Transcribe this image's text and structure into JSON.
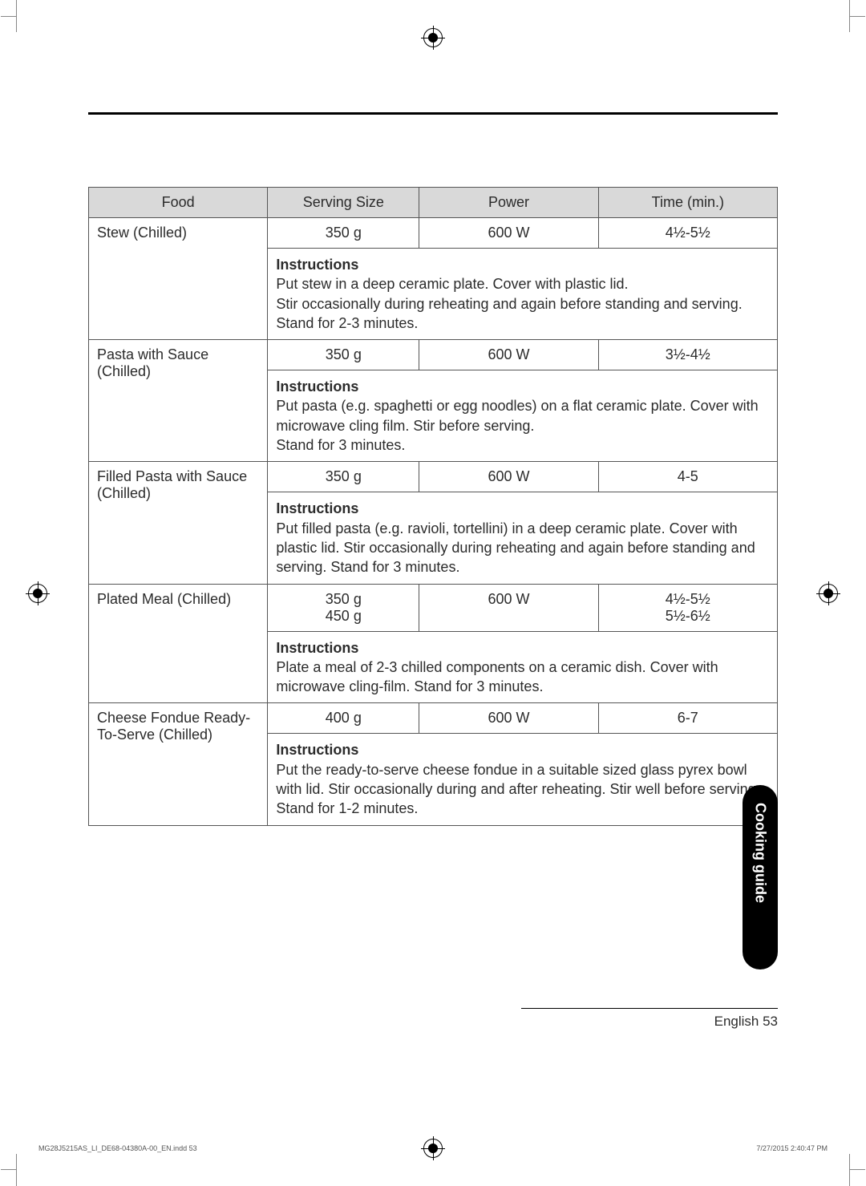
{
  "headers": {
    "food": "Food",
    "serving": "Serving Size",
    "power": "Power",
    "time": "Time (min.)"
  },
  "rows": [
    {
      "food": "Stew (Chilled)",
      "serving": "350 g",
      "power": "600 W",
      "time": "4½-5½",
      "instructions_label": "Instructions",
      "instructions": "Put stew in a deep ceramic plate. Cover with plastic lid.\nStir occasionally during reheating and again before standing and serving. Stand for 2-3 minutes."
    },
    {
      "food": "Pasta with Sauce (Chilled)",
      "serving": "350 g",
      "power": "600 W",
      "time": "3½-4½",
      "instructions_label": "Instructions",
      "instructions": "Put pasta (e.g. spaghetti or egg noodles) on a flat ceramic plate. Cover with microwave cling film. Stir before serving.\nStand for 3 minutes."
    },
    {
      "food": "Filled Pasta with Sauce (Chilled)",
      "serving": "350 g",
      "power": "600 W",
      "time": "4-5",
      "instructions_label": "Instructions",
      "instructions": "Put filled pasta (e.g. ravioli, tortellini) in a deep ceramic plate. Cover with plastic lid. Stir occasionally during reheating and again before standing and serving. Stand for 3 minutes."
    },
    {
      "food": "Plated Meal (Chilled)",
      "serving": "350 g\n450 g",
      "power": "600 W",
      "time": "4½-5½\n5½-6½",
      "instructions_label": "Instructions",
      "instructions": "Plate a meal of 2-3 chilled components on a ceramic dish. Cover with microwave cling-film. Stand for 3 minutes."
    },
    {
      "food": "Cheese Fondue Ready-To-Serve (Chilled)",
      "serving": "400 g",
      "power": "600 W",
      "time": "6-7",
      "instructions_label": "Instructions",
      "instructions": "Put the ready-to-serve cheese fondue in a suitable sized glass pyrex bowl with lid. Stir occasionally during and after reheating. Stir well before serving. Stand for 1-2 minutes."
    }
  ],
  "side_tab": "Cooking guide",
  "page_number": "English 53",
  "footer_left": "MG28J5215AS_LI_DE68-04380A-00_EN.indd   53",
  "footer_right": "7/27/2015   2:40:47 PM"
}
